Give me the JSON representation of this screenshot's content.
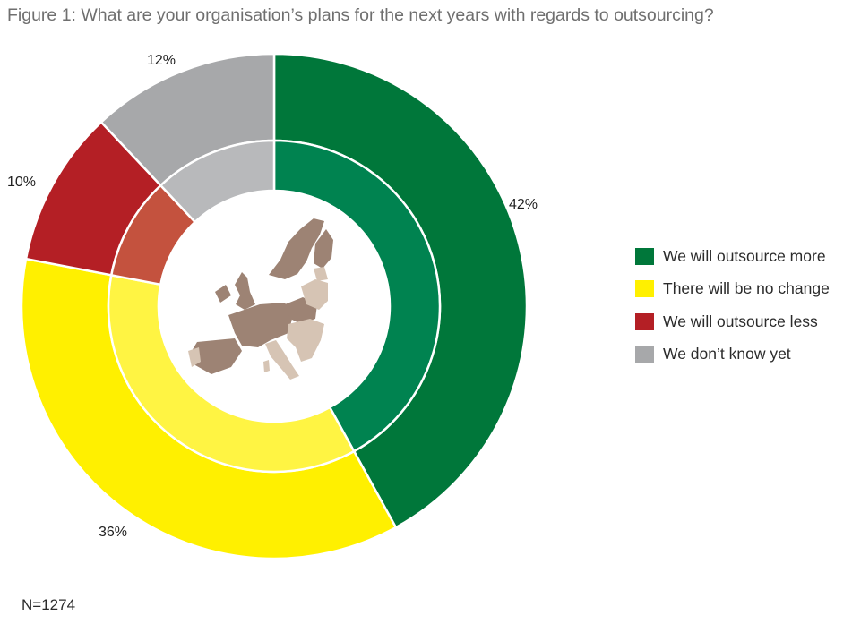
{
  "title": "Figure 1: What are your organisation’s plans for the next years with regards to outsourcing?",
  "note": "N=1274",
  "chart_data": {
    "type": "pie",
    "title": "Figure 1: What are your organisation’s plans for the next years with regards to outsourcing?",
    "categories": [
      "We will outsource more",
      "There will be no change",
      "We will outsource less",
      "We don’t know yet"
    ],
    "values": [
      42,
      36,
      10,
      12
    ],
    "labels": [
      "42%",
      "36%",
      "10%",
      "12%"
    ],
    "colors": {
      "outer": [
        "#00773a",
        "#fff000",
        "#b41f25",
        "#a7a8aa"
      ],
      "inner": [
        "#008350",
        "#fff443",
        "#c4523e",
        "#b8b9bb"
      ]
    },
    "legend_position": "right",
    "center_image": "europe-map-icon"
  }
}
